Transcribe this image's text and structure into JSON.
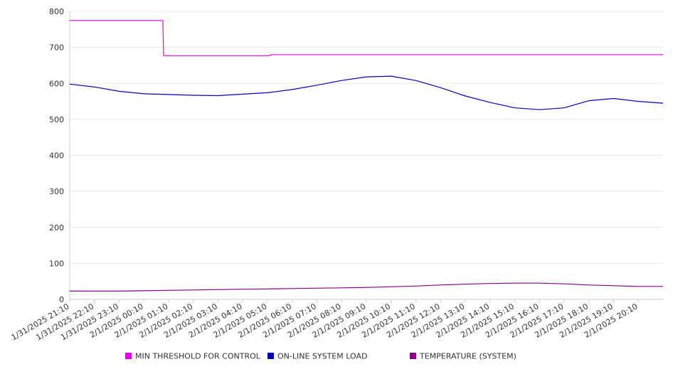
{
  "chart_data": {
    "type": "line",
    "title": "",
    "xlabel": "",
    "ylabel": "",
    "ylim": [
      0,
      800
    ],
    "yticks": [
      0,
      100,
      200,
      300,
      400,
      500,
      600,
      700,
      800
    ],
    "grid": true,
    "legend_position": "bottom",
    "x_tick_labels": [
      "1/31/2025 21:10",
      "1/31/2025 22:10",
      "1/31/2025 23:10",
      "2/1/2025 00:10",
      "2/1/2025 01:10",
      "2/1/2025 02:10",
      "2/1/2025 03:10",
      "2/1/2025 04:10",
      "2/1/2025 05:10",
      "2/1/2025 06:10",
      "2/1/2025 07:10",
      "2/1/2025 08:10",
      "2/1/2025 09:10",
      "2/1/2025 10:10",
      "2/1/2025 11:10",
      "2/1/2025 12:10",
      "2/1/2025 13:10",
      "2/1/2025 14:10",
      "2/1/2025 15:10",
      "2/1/2025 16:10",
      "2/1/2025 17:10",
      "2/1/2025 18:10",
      "2/1/2025 19:10",
      "2/1/2025 20:10"
    ],
    "x_range": [
      "1/31/2025 21:10",
      "2/1/2025 21:10"
    ],
    "series": [
      {
        "name": "MIN THRESHOLD FOR CONTROL",
        "color": "#ee00ee",
        "points": [
          [
            "1/31/2025 21:10",
            775
          ],
          [
            "2/1/2025 00:56",
            775
          ],
          [
            "2/1/2025 00:58",
            677
          ],
          [
            "2/1/2025 05:15",
            677
          ],
          [
            "2/1/2025 05:20",
            680
          ],
          [
            "2/1/2025 21:10",
            680
          ]
        ]
      },
      {
        "name": "ON-LINE SYSTEM LOAD",
        "color": "#0000cc",
        "points": [
          [
            "1/31/2025 21:10",
            598
          ],
          [
            "1/31/2025 22:10",
            590
          ],
          [
            "1/31/2025 23:10",
            578
          ],
          [
            "2/1/2025 00:10",
            571
          ],
          [
            "2/1/2025 01:10",
            569
          ],
          [
            "2/1/2025 02:10",
            567
          ],
          [
            "2/1/2025 03:10",
            566
          ],
          [
            "2/1/2025 04:10",
            570
          ],
          [
            "2/1/2025 05:10",
            574
          ],
          [
            "2/1/2025 06:10",
            583
          ],
          [
            "2/1/2025 07:10",
            595
          ],
          [
            "2/1/2025 08:10",
            608
          ],
          [
            "2/1/2025 09:10",
            618
          ],
          [
            "2/1/2025 10:10",
            620
          ],
          [
            "2/1/2025 11:10",
            608
          ],
          [
            "2/1/2025 12:10",
            588
          ],
          [
            "2/1/2025 13:10",
            565
          ],
          [
            "2/1/2025 14:10",
            547
          ],
          [
            "2/1/2025 15:10",
            532
          ],
          [
            "2/1/2025 16:10",
            527
          ],
          [
            "2/1/2025 17:10",
            532
          ],
          [
            "2/1/2025 18:10",
            552
          ],
          [
            "2/1/2025 19:10",
            558
          ],
          [
            "2/1/2025 20:10",
            550
          ],
          [
            "2/1/2025 21:10",
            545
          ]
        ]
      },
      {
        "name": "TEMPERATURE (SYSTEM)",
        "color": "#880088",
        "points": [
          [
            "1/31/2025 21:10",
            23
          ],
          [
            "1/31/2025 22:10",
            23
          ],
          [
            "1/31/2025 23:10",
            23
          ],
          [
            "2/1/2025 00:10",
            24
          ],
          [
            "2/1/2025 01:10",
            25
          ],
          [
            "2/1/2025 02:10",
            26
          ],
          [
            "2/1/2025 03:10",
            27
          ],
          [
            "2/1/2025 04:10",
            28
          ],
          [
            "2/1/2025 05:10",
            29
          ],
          [
            "2/1/2025 06:10",
            30
          ],
          [
            "2/1/2025 07:10",
            31
          ],
          [
            "2/1/2025 08:10",
            32
          ],
          [
            "2/1/2025 09:10",
            33
          ],
          [
            "2/1/2025 10:10",
            35
          ],
          [
            "2/1/2025 11:10",
            37
          ],
          [
            "2/1/2025 12:10",
            40
          ],
          [
            "2/1/2025 13:10",
            42
          ],
          [
            "2/1/2025 14:10",
            44
          ],
          [
            "2/1/2025 15:10",
            45
          ],
          [
            "2/1/2025 16:10",
            45
          ],
          [
            "2/1/2025 17:10",
            43
          ],
          [
            "2/1/2025 18:10",
            40
          ],
          [
            "2/1/2025 19:10",
            38
          ],
          [
            "2/1/2025 20:10",
            36
          ],
          [
            "2/1/2025 21:10",
            36
          ]
        ]
      }
    ]
  }
}
